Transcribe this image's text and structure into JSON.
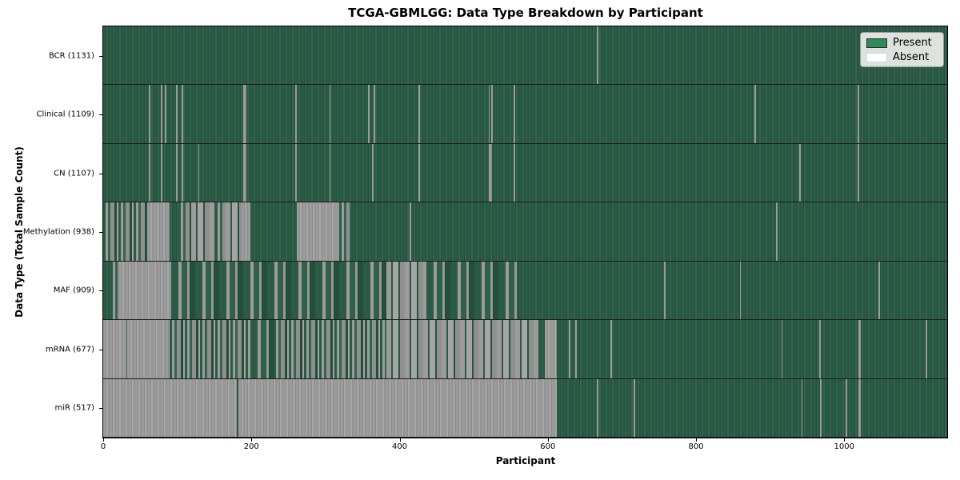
{
  "chart_data": {
    "type": "heatmap",
    "title": "TCGA-GBMLGG: Data Type Breakdown by Participant",
    "xlabel": "Participant",
    "ylabel": "Data Type (Total Sample Count)",
    "x_ticks": [
      0,
      200,
      400,
      600,
      800,
      1000
    ],
    "x_domain": [
      0,
      1139
    ],
    "grid": false,
    "legend_position": "upper right",
    "legend": [
      {
        "label": "Present",
        "color": "#2e8b57"
      },
      {
        "label": "Absent",
        "color": "#ffffff"
      }
    ],
    "colors": {
      "plot_present": "#2c5b45",
      "plot_absent": "#9b9b9b",
      "row_separator": "#1c1c1c"
    },
    "rows": [
      {
        "label": "BCR (1131)",
        "total_samples": 1131,
        "base": "present",
        "segments": [
          [
            666,
            668,
            "absent"
          ]
        ]
      },
      {
        "label": "Clinical (1109)",
        "total_samples": 1109,
        "base": "present",
        "segments": [
          [
            62,
            64,
            "absent"
          ],
          [
            78,
            80,
            "absent"
          ],
          [
            83,
            85,
            "absent"
          ],
          [
            98,
            100,
            "absent"
          ],
          [
            106,
            108,
            "absent"
          ],
          [
            189,
            193,
            "absent"
          ],
          [
            259,
            261,
            "absent"
          ],
          [
            305,
            307,
            "absent"
          ],
          [
            357,
            359,
            "absent"
          ],
          [
            365,
            367,
            "absent"
          ],
          [
            425,
            427,
            "absent"
          ],
          [
            520,
            522,
            "absent"
          ],
          [
            524,
            526,
            "absent"
          ],
          [
            554,
            556,
            "absent"
          ],
          [
            879,
            881,
            "absent"
          ],
          [
            1018,
            1020,
            "absent"
          ]
        ]
      },
      {
        "label": "CN (1107)",
        "total_samples": 1107,
        "base": "present",
        "segments": [
          [
            62,
            64,
            "absent"
          ],
          [
            78,
            80,
            "absent"
          ],
          [
            98,
            100,
            "absent"
          ],
          [
            106,
            108,
            "absent"
          ],
          [
            128,
            130,
            "absent"
          ],
          [
            189,
            193,
            "absent"
          ],
          [
            259,
            261,
            "absent"
          ],
          [
            305,
            307,
            "absent"
          ],
          [
            363,
            365,
            "absent"
          ],
          [
            425,
            427,
            "absent"
          ],
          [
            520,
            525,
            "absent"
          ],
          [
            554,
            556,
            "absent"
          ],
          [
            939,
            941,
            "absent"
          ],
          [
            1018,
            1020,
            "absent"
          ]
        ]
      },
      {
        "label": "Methylation (938)",
        "total_samples": 938,
        "base": "present",
        "segments": [
          [
            0,
            59,
            "mixed"
          ],
          [
            59,
            90,
            "absent"
          ],
          [
            102,
            119,
            "mixed"
          ],
          [
            119,
            151,
            "mixedg"
          ],
          [
            151,
            165,
            "mixed"
          ],
          [
            165,
            187,
            "mixedg"
          ],
          [
            187,
            199,
            "absent"
          ],
          [
            261,
            319,
            "absent"
          ],
          [
            319,
            332,
            "mixed"
          ],
          [
            414,
            416,
            "absent"
          ],
          [
            908,
            910,
            "absent"
          ]
        ]
      },
      {
        "label": "MAF (909)",
        "total_samples": 909,
        "base": "present",
        "segments": [
          [
            10,
            22,
            "mixed"
          ],
          [
            22,
            92,
            "absent"
          ],
          [
            92,
            382,
            "mixedp"
          ],
          [
            382,
            436,
            "mixedg"
          ],
          [
            436,
            558,
            "mixedp"
          ],
          [
            757,
            759,
            "absent"
          ],
          [
            859,
            861,
            "absent"
          ],
          [
            1046,
            1048,
            "absent"
          ]
        ]
      },
      {
        "label": "mRNA (677)",
        "total_samples": 677,
        "base": "present",
        "segments": [
          [
            0,
            31,
            "absent"
          ],
          [
            32,
            90,
            "absent"
          ],
          [
            90,
            199,
            "mixed"
          ],
          [
            199,
            230,
            "mixedp"
          ],
          [
            230,
            382,
            "mixed"
          ],
          [
            382,
            587,
            "mixedg"
          ],
          [
            596,
            612,
            "absent"
          ],
          [
            628,
            630,
            "absent"
          ],
          [
            637,
            639,
            "absent"
          ],
          [
            685,
            687,
            "absent"
          ],
          [
            915,
            917,
            "absent"
          ],
          [
            966,
            968,
            "absent"
          ],
          [
            1019,
            1022,
            "absent"
          ],
          [
            1110,
            1112,
            "absent"
          ]
        ]
      },
      {
        "label": "miR (517)",
        "total_samples": 517,
        "base": "present",
        "segments": [
          [
            0,
            180,
            "absent"
          ],
          [
            182,
            612,
            "absent"
          ],
          [
            666,
            668,
            "absent"
          ],
          [
            716,
            718,
            "absent"
          ],
          [
            942,
            944,
            "absent"
          ],
          [
            967,
            969,
            "absent"
          ],
          [
            1002,
            1004,
            "absent"
          ],
          [
            1019,
            1022,
            "absent"
          ]
        ]
      }
    ]
  }
}
